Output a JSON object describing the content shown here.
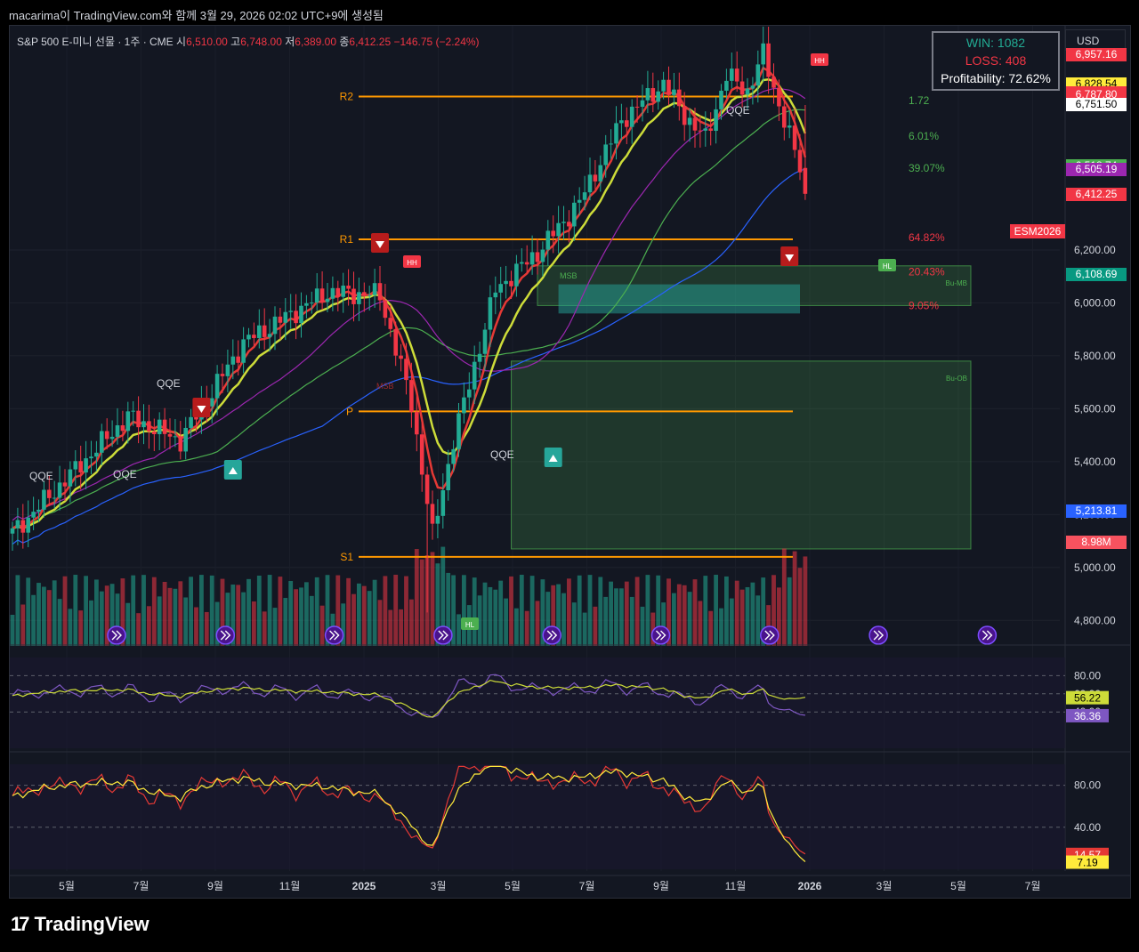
{
  "header": {
    "caption": "macarima이 TradingView.com와 함께 3월 29, 2026 02:02 UTC+9에 생성됨"
  },
  "symbol": {
    "title": "S&P 500 E-미니 선물 · 1주 · CME",
    "open_label": "시",
    "open": "6,510.00",
    "high_label": "고",
    "high": "6,748.00",
    "low_label": "저",
    "low": "6,389.00",
    "close_label": "종",
    "close": "6,412.25",
    "change": "−146.75 (−2.24%)"
  },
  "stats": {
    "win": "WIN: 1082",
    "loss": "LOSS: 408",
    "profitability": "Profitability: 72.62%"
  },
  "currency_button": "USD",
  "colors": {
    "up": "#22ab94",
    "down": "#f23645",
    "bg": "#131722",
    "ema_yellow": "#cddc39",
    "ema_red": "#e53935",
    "sma_green": "#4caf50",
    "sma_purple": "#9c27b0",
    "sma_blue": "#2962ff",
    "level_orange": "#ff9800"
  },
  "icons": {
    "logo": "tradingview-logo-icon",
    "replay": "fast-forward-circle-icon",
    "signal_down": "triangle-down-icon",
    "signal_up": "triangle-up-icon"
  },
  "chart_data": [
    {
      "type": "candlestick",
      "panel": "main",
      "symbol": "ESM2026",
      "timeframe": "1주",
      "ylim": [
        4700,
        6980
      ],
      "price_axis": [
        "6,200.00",
        "6,000.00",
        "5,800.00",
        "5,600.00",
        "5,400.00",
        "5,200.00",
        "5,000.00",
        "4,800.00"
      ],
      "price_axis_values": [
        6200,
        6000,
        5800,
        5600,
        5400,
        5200,
        5000,
        4800
      ],
      "time_axis": [
        "5월",
        "7월",
        "9월",
        "11월",
        "2025",
        "3월",
        "5월",
        "7월",
        "9월",
        "11월",
        "2026",
        "3월",
        "5월",
        "7월"
      ],
      "close_anchors": [
        [
          0,
          5130
        ],
        [
          10,
          5330
        ],
        [
          22,
          5570
        ],
        [
          32,
          5480
        ],
        [
          44,
          5850
        ],
        [
          60,
          6040
        ],
        [
          70,
          6030
        ],
        [
          76,
          5620
        ],
        [
          80,
          5120
        ],
        [
          84,
          5480
        ],
        [
          92,
          6050
        ],
        [
          100,
          6190
        ],
        [
          108,
          6380
        ],
        [
          116,
          6690
        ],
        [
          124,
          6830
        ],
        [
          128,
          6710
        ],
        [
          132,
          6620
        ],
        [
          136,
          6860
        ],
        [
          140,
          6800
        ],
        [
          143,
          6940
        ],
        [
          146,
          6750
        ],
        [
          150,
          6510
        ],
        [
          151,
          6412.25
        ]
      ],
      "low_bar": {
        "index": 79,
        "low": 4830
      },
      "last_bar": {
        "open": 6510.0,
        "high": 6748.0,
        "low": 6389.0,
        "close": 6412.25
      },
      "levels": [
        {
          "name": "R2",
          "value": 6780,
          "color": "#ff9800"
        },
        {
          "name": "R1",
          "value": 6240,
          "color": "#ff9800"
        },
        {
          "name": "P",
          "value": 5590,
          "color": "#ff9800"
        },
        {
          "name": "S1",
          "value": 5040,
          "color": "#ff9800"
        }
      ],
      "fib_labels": [
        "1.72",
        "6.01%",
        "39.07%",
        "64.82%",
        "20.43%",
        "9.05%"
      ],
      "fib_values": [
        6765,
        6630,
        6510,
        6247,
        6117,
        5990
      ],
      "zones": [
        {
          "name": "Bu-MB",
          "top": 6140,
          "bottom": 5990,
          "color": "#4caf50"
        },
        {
          "name": "Bu-OB",
          "top": 5780,
          "bottom": 5070,
          "color": "#4caf50"
        }
      ],
      "labels": [
        "QQE",
        "QQE",
        "QQE",
        "QQE",
        "QQE",
        "MSB",
        "MSB",
        "HH",
        "HH",
        "HL",
        "HL"
      ],
      "price_tags": [
        {
          "text": "6,957.16",
          "bg": "#f23645",
          "fg": "#ffffff"
        },
        {
          "text": "6,828.54",
          "bg": "#ffeb3b",
          "fg": "#000000"
        },
        {
          "text": "6,794.78",
          "bg": "#f23645",
          "fg": "#ffffff"
        },
        {
          "text": "6,787.80",
          "bg": "#f23645",
          "fg": "#ffffff"
        },
        {
          "text": "6,751.50",
          "bg": "#089981",
          "fg": "#ffffff"
        },
        {
          "text": "6,751.50",
          "bg": "#880e4f",
          "fg": "#ffffff"
        },
        {
          "text": "6,751.50",
          "bg": "#ffffff",
          "fg": "#000000"
        },
        {
          "text": "6,518.74",
          "bg": "#4caf50",
          "fg": "#ffffff"
        },
        {
          "text": "6,505.19",
          "bg": "#9c27b0",
          "fg": "#ffffff"
        },
        {
          "text": "6,412.25",
          "bg": "#f23645",
          "fg": "#ffffff"
        },
        {
          "text": "6,108.69",
          "bg": "#089981",
          "fg": "#ffffff"
        },
        {
          "text": "5,213.81",
          "bg": "#2962ff",
          "fg": "#ffffff"
        },
        {
          "text": "8.98M",
          "bg": "#f7525f",
          "fg": "#ffffff"
        }
      ],
      "price_tag_values": [
        6957.16,
        6828.54,
        6794.78,
        6787.8,
        6751.5,
        6751.5,
        6751.5,
        6518.74,
        6505.19,
        6412.25,
        6108.69,
        5213.81
      ],
      "symbol_tag": "ESM2026",
      "volume_last": "8.98M"
    },
    {
      "type": "line",
      "panel": "rsi",
      "name": "RSI",
      "ylim": [
        0,
        100
      ],
      "axis": [
        "80.00",
        "60.00",
        "40.00"
      ],
      "axis_values": [
        80,
        60,
        40
      ],
      "series": [
        {
          "color": "#7e57c2",
          "value": 36.36,
          "last_label": "36.36"
        },
        {
          "color": "#cddc39",
          "value": 56.22,
          "last_label": "56.22"
        }
      ]
    },
    {
      "type": "line",
      "panel": "stoch",
      "name": "Stochastic",
      "ylim": [
        0,
        100
      ],
      "axis": [
        "80.00",
        "40.00"
      ],
      "axis_values": [
        80,
        40
      ],
      "series": [
        {
          "color": "#e53935",
          "value": 14.57,
          "last_label": "14.57"
        },
        {
          "color": "#ffeb3b",
          "value": 7.19,
          "last_label": "7.19"
        }
      ]
    }
  ],
  "footer": {
    "brand": "TradingView"
  }
}
